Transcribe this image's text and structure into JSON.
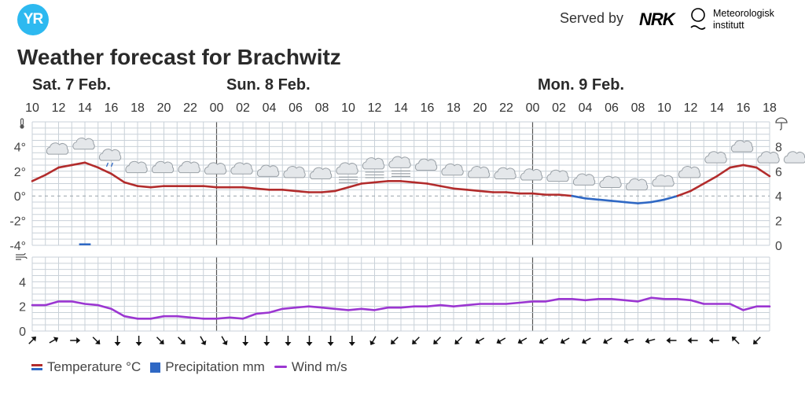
{
  "header": {
    "logo_text": "YR",
    "served_by": "Served by",
    "nrk_logo": "NRK",
    "met_name_line1": "Meteorologisk",
    "met_name_line2": "institutt"
  },
  "title": "Weather forecast for Brachwitz",
  "days": [
    "Sat. 7 Feb.",
    "Sun. 8 Feb.",
    "Mon. 9 Feb."
  ],
  "colors": {
    "temp_warm": "#b22c2c",
    "temp_cold": "#2f68c4",
    "precip": "#2f68c4",
    "wind": "#9b36d1",
    "grid": "#c9d1d8"
  },
  "chart_data": {
    "type": "line",
    "hours": [
      "10",
      "11",
      "12",
      "13",
      "14",
      "15",
      "16",
      "17",
      "18",
      "19",
      "20",
      "21",
      "22",
      "23",
      "00",
      "01",
      "02",
      "03",
      "04",
      "05",
      "06",
      "07",
      "08",
      "09",
      "10",
      "11",
      "12",
      "13",
      "14",
      "15",
      "16",
      "17",
      "18",
      "19",
      "20",
      "21",
      "22",
      "23",
      "00",
      "01",
      "02",
      "03",
      "04",
      "05",
      "06",
      "07",
      "08",
      "09",
      "10",
      "11",
      "12",
      "13",
      "14",
      "15",
      "16",
      "17",
      "18"
    ],
    "hour_tick_labels": [
      "10",
      "12",
      "14",
      "16",
      "18",
      "20",
      "22",
      "00",
      "02",
      "04",
      "06",
      "08",
      "10",
      "12",
      "14",
      "16",
      "18",
      "20",
      "22",
      "00",
      "02",
      "04",
      "06",
      "08",
      "10",
      "12",
      "14",
      "16",
      "18"
    ],
    "temperature": {
      "name": "Temperature °C",
      "unit": "°C",
      "ylim": [
        -4,
        6
      ],
      "y_ticks": [
        "4°",
        "2°",
        "0°",
        "-2°",
        "-4°"
      ],
      "values": [
        1.2,
        1.7,
        2.3,
        2.5,
        2.7,
        2.3,
        1.8,
        1.1,
        0.8,
        0.7,
        0.8,
        0.8,
        0.8,
        0.8,
        0.7,
        0.7,
        0.7,
        0.6,
        0.5,
        0.5,
        0.4,
        0.3,
        0.3,
        0.4,
        0.7,
        1.0,
        1.1,
        1.2,
        1.2,
        1.1,
        1.0,
        0.8,
        0.6,
        0.5,
        0.4,
        0.3,
        0.3,
        0.2,
        0.2,
        0.1,
        0.1,
        0.0,
        -0.2,
        -0.3,
        -0.4,
        -0.5,
        -0.6,
        -0.5,
        -0.3,
        0.0,
        0.4,
        1.0,
        1.6,
        2.3,
        2.5,
        2.3,
        1.6
      ]
    },
    "precipitation": {
      "name": "Precipitation mm",
      "unit": "mm",
      "ylim": [
        0,
        10
      ],
      "y_ticks": [
        "8",
        "6",
        "4",
        "2",
        "0"
      ],
      "values": [
        0,
        0,
        0,
        0,
        0.1,
        0,
        0,
        0,
        0,
        0,
        0,
        0,
        0,
        0,
        0,
        0,
        0,
        0,
        0,
        0,
        0,
        0,
        0,
        0,
        0,
        0,
        0,
        0,
        0,
        0,
        0,
        0,
        0,
        0,
        0,
        0,
        0,
        0,
        0,
        0,
        0,
        0,
        0,
        0,
        0,
        0,
        0,
        0,
        0,
        0,
        0,
        0,
        0,
        0,
        0,
        0,
        0
      ]
    },
    "wind": {
      "name": "Wind m/s",
      "unit": "m/s",
      "ylim": [
        0,
        6
      ],
      "y_ticks": [
        "4",
        "2",
        "0"
      ],
      "values": [
        2.1,
        2.1,
        2.4,
        2.4,
        2.2,
        2.1,
        1.8,
        1.2,
        1.0,
        1.0,
        1.2,
        1.2,
        1.1,
        1.0,
        1.0,
        1.1,
        1.0,
        1.4,
        1.5,
        1.8,
        1.9,
        2.0,
        1.9,
        1.8,
        1.7,
        1.8,
        1.7,
        1.9,
        1.9,
        2.0,
        2.0,
        2.1,
        2.0,
        2.1,
        2.2,
        2.2,
        2.2,
        2.3,
        2.4,
        2.4,
        2.6,
        2.6,
        2.5,
        2.6,
        2.6,
        2.5,
        2.4,
        2.7,
        2.6,
        2.6,
        2.5,
        2.2,
        2.2,
        2.2,
        1.7,
        2.0,
        2.0
      ]
    },
    "symbols": [
      {
        "slot": 1,
        "icon": "cloud-icon"
      },
      {
        "slot": 2,
        "icon": "cloud-icon"
      },
      {
        "slot": 3,
        "icon": "light-rain-cloud-icon"
      },
      {
        "slot": 4,
        "icon": "cloud-icon"
      },
      {
        "slot": 5,
        "icon": "cloud-icon"
      },
      {
        "slot": 6,
        "icon": "cloud-icon"
      },
      {
        "slot": 7,
        "icon": "cloud-icon"
      },
      {
        "slot": 8,
        "icon": "cloud-icon"
      },
      {
        "slot": 9,
        "icon": "cloud-icon"
      },
      {
        "slot": 10,
        "icon": "cloud-icon"
      },
      {
        "slot": 11,
        "icon": "cloud-icon"
      },
      {
        "slot": 12,
        "icon": "fog-icon"
      },
      {
        "slot": 13,
        "icon": "fog-icon"
      },
      {
        "slot": 14,
        "icon": "fog-icon"
      },
      {
        "slot": 15,
        "icon": "cloud-icon"
      },
      {
        "slot": 16,
        "icon": "cloud-icon"
      },
      {
        "slot": 17,
        "icon": "cloud-icon"
      },
      {
        "slot": 18,
        "icon": "cloud-icon"
      },
      {
        "slot": 19,
        "icon": "cloud-icon"
      },
      {
        "slot": 20,
        "icon": "cloud-icon"
      },
      {
        "slot": 21,
        "icon": "cloud-icon"
      },
      {
        "slot": 22,
        "icon": "cloud-icon"
      },
      {
        "slot": 23,
        "icon": "cloud-icon"
      },
      {
        "slot": 24,
        "icon": "cloud-icon"
      },
      {
        "slot": 25,
        "icon": "cloud-icon"
      },
      {
        "slot": 26,
        "icon": "cloud-icon"
      },
      {
        "slot": 27,
        "icon": "cloud-icon"
      },
      {
        "slot": 28,
        "icon": "cloud-icon"
      },
      {
        "slot": 29,
        "icon": "cloud-icon"
      },
      {
        "slot": 30,
        "icon": "cloud-icon"
      }
    ],
    "wind_direction_deg": [
      225,
      240,
      270,
      315,
      0,
      0,
      315,
      315,
      330,
      330,
      0,
      0,
      0,
      0,
      0,
      0,
      30,
      45,
      45,
      45,
      45,
      60,
      60,
      60,
      60,
      60,
      60,
      60,
      75,
      75,
      90,
      90,
      90,
      135,
      45
    ]
  },
  "legend": {
    "temperature": "Temperature °C",
    "precipitation": "Precipitation mm",
    "wind": "Wind m/s"
  }
}
